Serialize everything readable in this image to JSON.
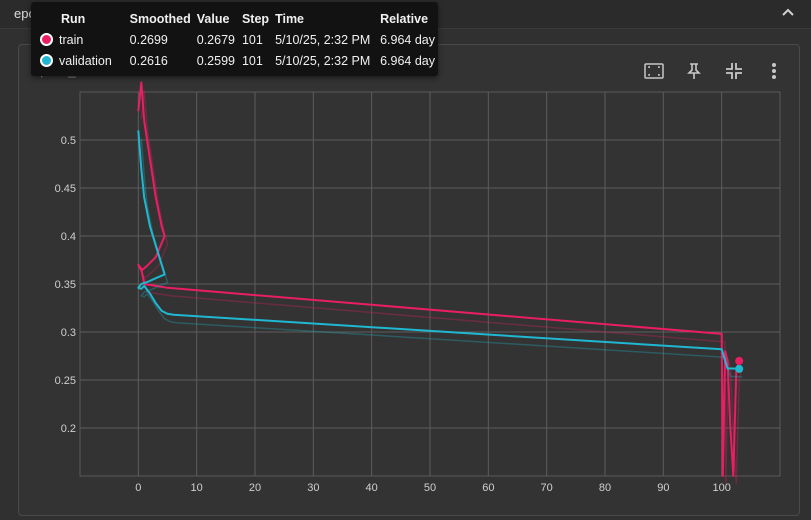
{
  "section": {
    "title": "epoch_loss"
  },
  "card": {
    "title": "epoch_loss"
  },
  "toolbar": {
    "fit_icon": "fit-domain-icon",
    "pin_icon": "pin-icon",
    "collapse_icon": "collapse-icon",
    "more_icon": "more-vert-icon"
  },
  "tooltip": {
    "headers": {
      "run": "Run",
      "smoothed": "Smoothed",
      "value": "Value",
      "step": "Step",
      "time": "Time",
      "relative": "Relative"
    },
    "rows": [
      {
        "color": "#e91e63",
        "run": "train",
        "smoothed": "0.2699",
        "value": "0.2679",
        "step": "101",
        "time": "5/10/25, 2:32 PM",
        "relative": "6.964 day"
      },
      {
        "color": "#1fb8d0",
        "run": "validation",
        "smoothed": "0.2616",
        "value": "0.2599",
        "step": "101",
        "time": "5/10/25, 2:32 PM",
        "relative": "6.964 day"
      }
    ]
  },
  "chart_data": {
    "type": "line",
    "title": "epoch_loss",
    "xlabel": "",
    "ylabel": "",
    "xlim": [
      -10,
      110
    ],
    "ylim": [
      0.15,
      0.55
    ],
    "x_ticks": [
      "0",
      "10",
      "20",
      "30",
      "40",
      "50",
      "60",
      "70",
      "80",
      "90",
      "100"
    ],
    "y_ticks": [
      "0.2",
      "0.25",
      "0.3",
      "0.35",
      "0.4",
      "0.45",
      "0.5"
    ],
    "grid": true,
    "series": [
      {
        "name": "train",
        "color": "#e91e63",
        "x": [
          0,
          0.5,
          1,
          2,
          3,
          4,
          4.5,
          3,
          1.5,
          0.5,
          0,
          0.5,
          1,
          3,
          5,
          100,
          100.2,
          100.6,
          101,
          101.5,
          102,
          102.5,
          103
        ],
        "y": [
          0.53,
          0.56,
          0.52,
          0.48,
          0.44,
          0.41,
          0.4,
          0.378,
          0.369,
          0.364,
          0.37,
          0.366,
          0.35,
          0.348,
          0.346,
          0.298,
          0.15,
          0.28,
          0.27,
          0.2,
          0.15,
          0.26,
          0.2699
        ]
      },
      {
        "name": "validation",
        "color": "#1fb8d0",
        "x": [
          0,
          0.5,
          1,
          2,
          3,
          4,
          4.5,
          3,
          1.5,
          0.5,
          0,
          0.5,
          1,
          2,
          3,
          4,
          5,
          6,
          100,
          101,
          102,
          103
        ],
        "y": [
          0.51,
          0.47,
          0.44,
          0.41,
          0.39,
          0.37,
          0.36,
          0.356,
          0.352,
          0.35,
          0.346,
          0.345,
          0.348,
          0.34,
          0.33,
          0.322,
          0.319,
          0.318,
          0.282,
          0.262,
          0.262,
          0.2616
        ]
      }
    ]
  }
}
